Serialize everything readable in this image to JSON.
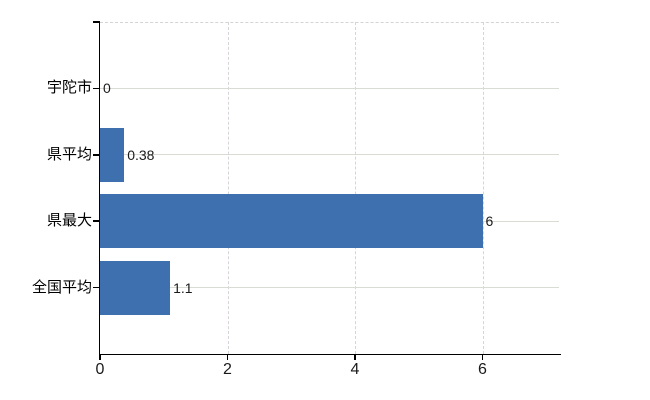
{
  "chart_data": {
    "type": "bar",
    "orientation": "horizontal",
    "title": "",
    "xlabel": "",
    "ylabel": "",
    "categories": [
      "宇陀市",
      "県平均",
      "県最大",
      "全国平均"
    ],
    "values": [
      0,
      0.38,
      6,
      1.1
    ],
    "value_labels": [
      "0",
      "0.38",
      "6",
      "1.1"
    ],
    "x_ticks": [
      0,
      2,
      4,
      6
    ],
    "x_tick_labels": [
      "0",
      "2",
      "4",
      "6"
    ],
    "xlim": [
      0,
      7.2
    ],
    "grid": true,
    "legend": false,
    "colors": {
      "bar": "#3e6fae",
      "axis": "#000000",
      "gridline_horizontal": "#d8dcd4",
      "gridline_vertical": "#d8d3da",
      "top_border": "#d4d4d4",
      "background": "#ffffff",
      "text": "#000000"
    }
  }
}
